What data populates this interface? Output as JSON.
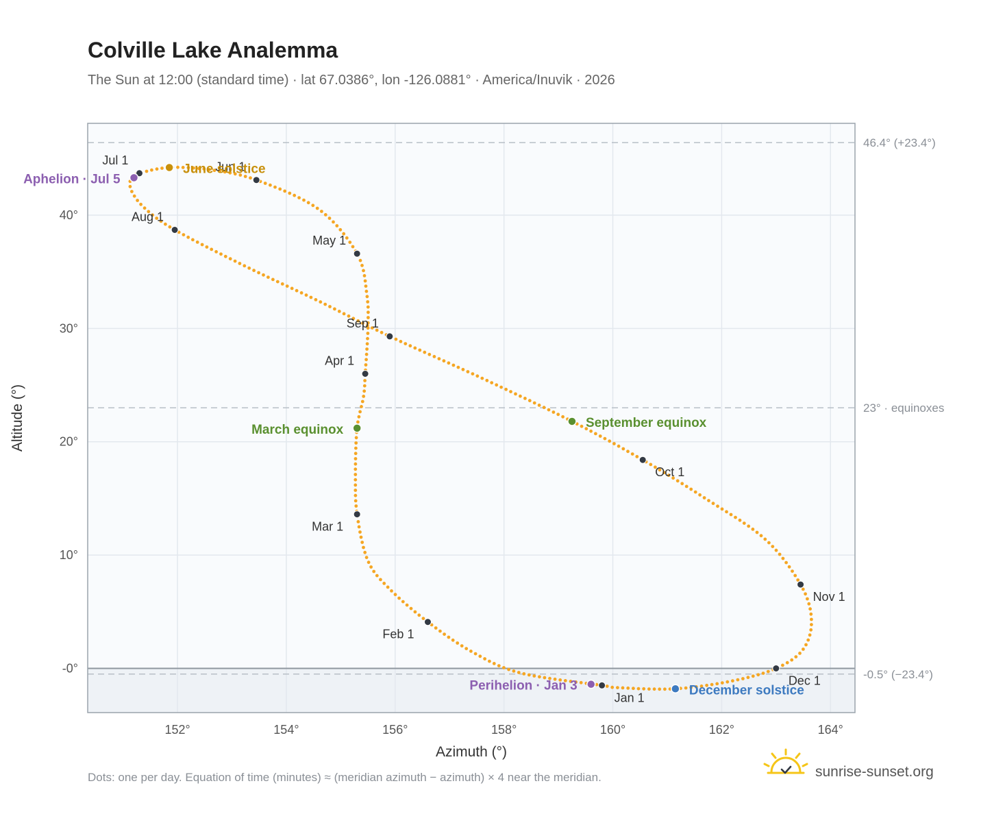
{
  "header": {
    "title": "Colville Lake Analemma",
    "subtitle": "The Sun at 12:00 (standard time) · lat 67.0386°, lon -126.0881° · America/Inuvik · 2026"
  },
  "footer": {
    "note": "Dots: one per day. Equation of time (minutes) ≈ (meridian azimuth − azimuth) × 4 near the meridian.",
    "brand": "sunrise-sunset.org"
  },
  "colors": {
    "curve": "#f5a623",
    "month_marker": "#333a44",
    "june_solstice": "#c8900c",
    "december_solstice": "#3d7ac0",
    "equinox": "#5a9030",
    "apsis": "#8c5fb0",
    "plot_bg": "#f9fbfd",
    "below_horizon_bg": "#eef2f6"
  },
  "chart_data": {
    "type": "scatter",
    "xlabel": "Azimuth (°)",
    "ylabel": "Altitude (°)",
    "xlim": [
      150.35,
      164.45
    ],
    "ylim": [
      -3.9,
      48.1
    ],
    "x_ticks": [
      {
        "value": 152,
        "label": "152°"
      },
      {
        "value": 154,
        "label": "154°"
      },
      {
        "value": 156,
        "label": "156°"
      },
      {
        "value": 158,
        "label": "158°"
      },
      {
        "value": 160,
        "label": "160°"
      },
      {
        "value": 162,
        "label": "162°"
      },
      {
        "value": 164,
        "label": "164°"
      }
    ],
    "y_ticks": [
      {
        "value": 0,
        "label": "-0°"
      },
      {
        "value": 10,
        "label": "10°"
      },
      {
        "value": 20,
        "label": "20°"
      },
      {
        "value": 30,
        "label": "30°"
      },
      {
        "value": 40,
        "label": "40°"
      }
    ],
    "grid": true,
    "horizon_altitude": 0,
    "reference_lines": [
      {
        "altitude": 46.4,
        "label": "46.4° (+23.4°)"
      },
      {
        "altitude": 23,
        "label": "23° · equinoxes"
      },
      {
        "altitude": -0.5,
        "label": "-0.5° (−23.4°)"
      }
    ],
    "series": [
      {
        "kind": "daily_path",
        "points": [
          [
            159.8,
            -1.5
          ],
          [
            158.3,
            -0.4
          ],
          [
            157.4,
            1.5
          ],
          [
            156.6,
            4.1
          ],
          [
            155.9,
            7.0
          ],
          [
            155.5,
            9.5
          ],
          [
            155.3,
            13.6
          ],
          [
            155.27,
            17.0
          ],
          [
            155.3,
            21.2
          ],
          [
            155.42,
            24.0
          ],
          [
            155.45,
            26.0
          ],
          [
            155.5,
            30.0
          ],
          [
            155.48,
            33.0
          ],
          [
            155.3,
            36.6
          ],
          [
            154.6,
            40.5
          ],
          [
            153.45,
            43.1
          ],
          [
            152.6,
            44.0
          ],
          [
            151.85,
            44.2
          ],
          [
            151.3,
            43.7
          ],
          [
            151.15,
            43.3
          ],
          [
            151.15,
            42.2
          ],
          [
            151.4,
            40.6
          ],
          [
            151.95,
            38.7
          ],
          [
            153.2,
            35.6
          ],
          [
            154.6,
            32.4
          ],
          [
            155.9,
            29.3
          ],
          [
            157.6,
            25.6
          ],
          [
            159.25,
            21.8
          ],
          [
            160.55,
            18.4
          ],
          [
            161.7,
            15.0
          ],
          [
            162.8,
            11.4
          ],
          [
            163.45,
            7.4
          ],
          [
            163.65,
            4.3
          ],
          [
            163.5,
            1.7
          ],
          [
            163.0,
            0.0
          ],
          [
            162.2,
            -1.1
          ],
          [
            161.15,
            -1.8
          ],
          [
            160.1,
            -1.7
          ],
          [
            159.8,
            -1.5
          ]
        ]
      }
    ],
    "month_markers": [
      {
        "label": "Jan 1",
        "azimuth": 159.8,
        "altitude": -1.5,
        "label_pos": "below"
      },
      {
        "label": "Feb 1",
        "azimuth": 156.6,
        "altitude": 4.1,
        "label_pos": "below-left"
      },
      {
        "label": "Mar 1",
        "azimuth": 155.3,
        "altitude": 13.6,
        "label_pos": "below-left"
      },
      {
        "label": "Apr 1",
        "azimuth": 155.45,
        "altitude": 26.0,
        "label_pos": "above-left"
      },
      {
        "label": "May 1",
        "azimuth": 155.3,
        "altitude": 36.6,
        "label_pos": "above-left"
      },
      {
        "label": "Jun 1",
        "azimuth": 153.45,
        "altitude": 43.1,
        "label_pos": "above-left"
      },
      {
        "label": "Jul 1",
        "azimuth": 151.3,
        "altitude": 43.7,
        "label_pos": "above-left"
      },
      {
        "label": "Aug 1",
        "azimuth": 151.95,
        "altitude": 38.7,
        "label_pos": "above-left"
      },
      {
        "label": "Sep 1",
        "azimuth": 155.9,
        "altitude": 29.3,
        "label_pos": "above-left"
      },
      {
        "label": "Oct 1",
        "azimuth": 160.55,
        "altitude": 18.4,
        "label_pos": "below-right"
      },
      {
        "label": "Nov 1",
        "azimuth": 163.45,
        "altitude": 7.4,
        "label_pos": "below-right"
      },
      {
        "label": "Dec 1",
        "azimuth": 163.0,
        "altitude": 0.0,
        "label_pos": "below-right"
      }
    ],
    "events": [
      {
        "label": "June solstice",
        "azimuth": 151.85,
        "altitude": 44.2,
        "color": "#c8900c",
        "label_pos": "right"
      },
      {
        "label": "December solstice",
        "azimuth": 161.15,
        "altitude": -1.8,
        "color": "#3d7ac0",
        "label_pos": "right"
      },
      {
        "label": "March equinox",
        "azimuth": 155.3,
        "altitude": 21.2,
        "color": "#5a9030",
        "label_pos": "left"
      },
      {
        "label": "September equinox",
        "azimuth": 159.25,
        "altitude": 21.8,
        "color": "#5a9030",
        "label_pos": "right"
      },
      {
        "label": "Aphelion · Jul 5",
        "azimuth": 151.2,
        "altitude": 43.3,
        "color": "#8c5fb0",
        "label_pos": "left"
      },
      {
        "label": "Perihelion · Jan 3",
        "azimuth": 159.6,
        "altitude": -1.4,
        "color": "#8c5fb0",
        "label_pos": "left"
      }
    ]
  }
}
